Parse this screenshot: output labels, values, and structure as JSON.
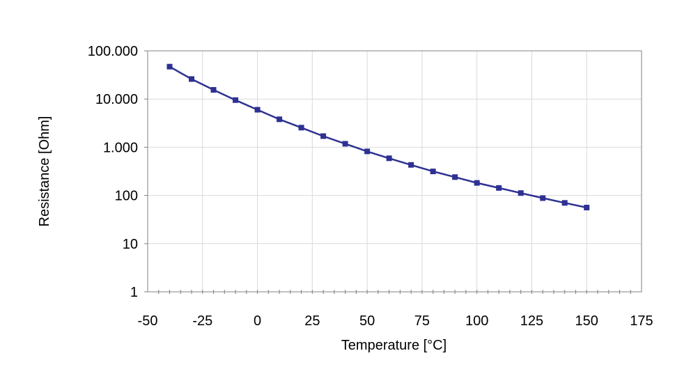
{
  "chart_data": {
    "type": "line",
    "xlabel": "Temperature [°C]",
    "ylabel": "Resistance [Ohm]",
    "y_scale": "log",
    "grid": true,
    "xlim": [
      -50,
      175
    ],
    "ylim": [
      1,
      100000
    ],
    "x_ticks": [
      {
        "value": -50,
        "label": "-50"
      },
      {
        "value": -25,
        "label": "-25"
      },
      {
        "value": 0,
        "label": "0"
      },
      {
        "value": 25,
        "label": "25"
      },
      {
        "value": 50,
        "label": "50"
      },
      {
        "value": 75,
        "label": "75"
      },
      {
        "value": 100,
        "label": "100"
      },
      {
        "value": 125,
        "label": "125"
      },
      {
        "value": 150,
        "label": "150"
      },
      {
        "value": 175,
        "label": "175"
      }
    ],
    "y_ticks": [
      {
        "value": 1,
        "label": "1"
      },
      {
        "value": 10,
        "label": "10"
      },
      {
        "value": 100,
        "label": "100"
      },
      {
        "value": 1000,
        "label": "1.000"
      },
      {
        "value": 10000,
        "label": "10.000"
      },
      {
        "value": 100000,
        "label": "100.000"
      }
    ],
    "series": [
      {
        "color": "#2e3192",
        "x": [
          -40,
          -30,
          -20,
          -10,
          0,
          10,
          20,
          30,
          40,
          50,
          60,
          70,
          80,
          90,
          100,
          110,
          120,
          130,
          140,
          150
        ],
        "y": [
          47000,
          26000,
          15500,
          9500,
          6000,
          3800,
          2550,
          1700,
          1180,
          820,
          590,
          430,
          315,
          240,
          182,
          143,
          112,
          88,
          70,
          56
        ]
      }
    ]
  }
}
